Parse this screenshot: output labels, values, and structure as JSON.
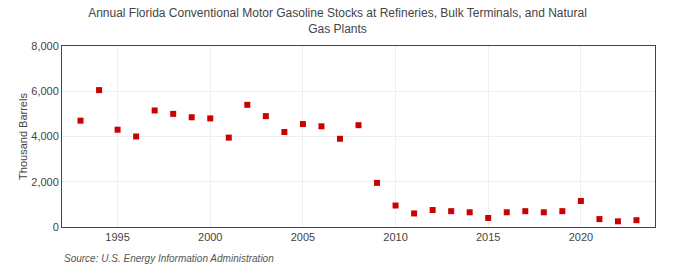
{
  "chart_data": {
    "type": "scatter",
    "title": "Annual Florida Conventional Motor Gasoline Stocks at Refineries, Bulk Terminals, and Natural\nGas Plants",
    "y_label": "Thousand Barrels",
    "annotations": [
      "Source: U.S. Energy Information Administration"
    ],
    "x": [
      1993,
      1994,
      1995,
      1996,
      1997,
      1998,
      1999,
      2000,
      2001,
      2002,
      2003,
      2004,
      2005,
      2006,
      2007,
      2008,
      2009,
      2010,
      2011,
      2012,
      2013,
      2014,
      2015,
      2016,
      2017,
      2018,
      2019,
      2020,
      2021,
      2022,
      2023
    ],
    "values": [
      4700,
      6050,
      4300,
      4000,
      5150,
      5000,
      4850,
      4800,
      3950,
      5400,
      4900,
      4200,
      4550,
      4450,
      3900,
      4500,
      1950,
      950,
      600,
      750,
      700,
      650,
      400,
      650,
      700,
      650,
      700,
      1150,
      350,
      250,
      300
    ],
    "color": "#cc0000",
    "marker": "square",
    "grid": true,
    "xlim": [
      1992,
      2024
    ],
    "xticks": [
      1995,
      2000,
      2005,
      2010,
      2015,
      2020
    ],
    "ylim": [
      0,
      8000
    ],
    "yticks": [
      0,
      {
        "value": 2000,
        "label": "2,000"
      },
      {
        "value": 4000,
        "label": "4,000"
      },
      {
        "value": 6000,
        "label": "6,000"
      },
      {
        "value": 8000,
        "label": "8,000"
      }
    ]
  }
}
